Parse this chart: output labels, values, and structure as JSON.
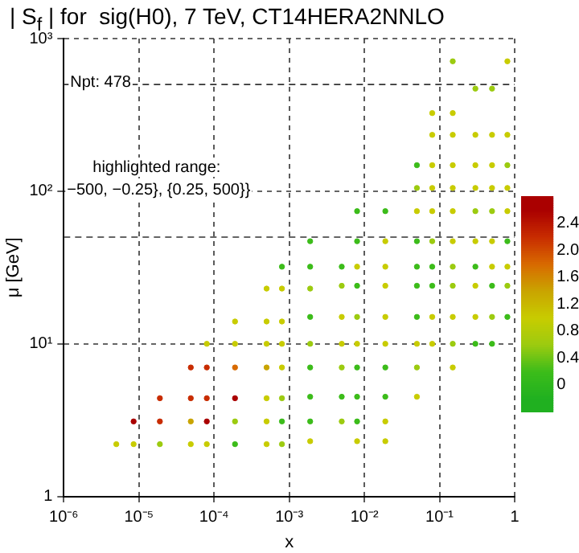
{
  "chart_data": {
    "type": "scatter",
    "title": "| S$_{f}$ | for  sig(H0), 7 TeV, CT14HERA2NNLO",
    "xlabel": "x",
    "ylabel": "μ [GeV]",
    "annotations": [
      "Npt: 478",
      "highlighted range:",
      "−500, −0.25}, {0.25, 500}}"
    ],
    "log": "xy",
    "grid": true,
    "legend": false,
    "marker": "circle",
    "xlim": [
      1e-06,
      1
    ],
    "ylim": [
      1,
      1000
    ],
    "xticks": [
      {
        "value": 1e-06,
        "label": "10⁻⁶"
      },
      {
        "value": 1e-05,
        "label": "10⁻⁵"
      },
      {
        "value": 0.0001,
        "label": "10⁻⁴"
      },
      {
        "value": 0.001,
        "label": "10⁻³"
      },
      {
        "value": 0.01,
        "label": "10⁻²"
      },
      {
        "value": 0.1,
        "label": "10⁻¹"
      },
      1
    ],
    "yticks": [
      1,
      {
        "value": 10,
        "label": "10¹"
      },
      {
        "value": 100,
        "label": "10²"
      },
      {
        "value": 1000,
        "label": "10³"
      }
    ],
    "ref_lines": [
      {
        "axis": "y",
        "value": 50,
        "line_style": "dashed"
      },
      {
        "axis": "y",
        "value": 500,
        "line_style": "dashed"
      }
    ],
    "clim": [
      -0.4,
      2.8
    ],
    "cticks": [
      0,
      0.4,
      0.8,
      1.2,
      1.6,
      {
        "value": 2,
        "label": "2.0"
      },
      2.4
    ],
    "x": [
      5e-06,
      8.5e-06,
      8.5e-06,
      1.9e-05,
      1.9e-05,
      1.9e-05,
      4.9e-05,
      4.9e-05,
      4.9e-05,
      4.9e-05,
      8e-05,
      8e-05,
      8e-05,
      8e-05,
      8e-05,
      0.00019,
      0.00019,
      0.00019,
      0.00019,
      0.00019,
      0.00019,
      0.0005,
      0.0005,
      0.0005,
      0.0005,
      0.0005,
      0.0005,
      0.0005,
      0.0008,
      0.0008,
      0.0008,
      0.0008,
      0.0008,
      0.0008,
      0.0008,
      0.0008,
      0.0019,
      0.0019,
      0.0019,
      0.0019,
      0.0019,
      0.0019,
      0.0019,
      0.0019,
      0.0019,
      0.005,
      0.005,
      0.005,
      0.005,
      0.005,
      0.005,
      0.005,
      0.008,
      0.008,
      0.008,
      0.008,
      0.008,
      0.008,
      0.008,
      0.008,
      0.008,
      0.008,
      0.019,
      0.019,
      0.019,
      0.019,
      0.019,
      0.019,
      0.019,
      0.019,
      0.019,
      0.019,
      0.05,
      0.05,
      0.05,
      0.05,
      0.05,
      0.05,
      0.05,
      0.05,
      0.05,
      0.05,
      0.08,
      0.08,
      0.08,
      0.08,
      0.08,
      0.08,
      0.08,
      0.08,
      0.08,
      0.08,
      0.15,
      0.15,
      0.15,
      0.15,
      0.15,
      0.15,
      0.15,
      0.15,
      0.15,
      0.15,
      0.15,
      0.15,
      0.3,
      0.3,
      0.3,
      0.3,
      0.3,
      0.3,
      0.3,
      0.3,
      0.3,
      0.3,
      0.5,
      0.5,
      0.5,
      0.5,
      0.5,
      0.5,
      0.5,
      0.5,
      0.5,
      0.5,
      0.8,
      0.8,
      0.8,
      0.8,
      0.8,
      0.8,
      0.8,
      0.8,
      0.8
    ],
    "values": [
      2.2,
      2.2,
      3.1,
      2.2,
      3.1,
      4.4,
      2.2,
      3.1,
      4.4,
      7,
      2.2,
      3.1,
      4.4,
      7,
      10,
      2.2,
      3.1,
      4.4,
      7,
      10,
      14,
      2.2,
      3.1,
      4.4,
      7,
      10,
      14,
      23,
      2.2,
      3.1,
      4.4,
      7,
      10,
      14,
      23,
      32,
      2.3,
      3.1,
      4.5,
      7,
      10,
      15,
      23,
      32,
      47,
      3.1,
      4.5,
      7,
      10,
      15,
      24,
      32,
      2.3,
      3.1,
      4.5,
      7,
      10,
      15,
      24,
      32,
      47,
      74,
      2.3,
      3.1,
      4.5,
      7,
      10,
      15,
      24,
      32,
      47,
      74,
      4.5,
      7,
      10,
      15,
      24,
      32,
      47,
      74,
      105,
      148,
      10,
      15,
      24,
      32,
      47,
      74,
      105,
      148,
      234,
      325,
      7,
      10,
      15,
      24,
      32,
      47,
      74,
      105,
      148,
      234,
      325,
      710,
      10,
      15,
      24,
      32,
      47,
      74,
      105,
      148,
      234,
      470,
      10,
      15,
      24,
      32,
      47,
      74,
      105,
      148,
      234,
      470,
      15,
      24,
      32,
      47,
      74,
      105,
      148,
      234,
      710
    ],
    "cvalues": [
      1.0,
      1.0,
      2.6,
      0.6,
      2.2,
      2.2,
      1.0,
      1.4,
      2.2,
      2.2,
      1.0,
      2.6,
      2.2,
      2.2,
      1.0,
      0.2,
      0.6,
      2.6,
      1.8,
      1.0,
      1.0,
      1.0,
      1.0,
      1.0,
      1.4,
      1.0,
      1.0,
      1.0,
      0.6,
      0.2,
      0.6,
      1.0,
      1.0,
      1.0,
      1.0,
      0.2,
      1.0,
      0.2,
      0.2,
      0.2,
      0.6,
      0.2,
      0.6,
      0.2,
      0.2,
      0.6,
      0.2,
      0.6,
      1.0,
      1.0,
      0.6,
      0.2,
      1.0,
      0.2,
      0.2,
      0.2,
      1.0,
      0.6,
      0.2,
      1.0,
      0.2,
      0.2,
      1.0,
      1.0,
      0.2,
      0.2,
      1.0,
      1.0,
      1.0,
      1.0,
      1.0,
      0.2,
      1.0,
      0.6,
      1.0,
      0.2,
      0.2,
      0.2,
      0.2,
      1.0,
      0.6,
      0.2,
      1.0,
      1.0,
      0.2,
      0.2,
      0.6,
      1.0,
      1.0,
      1.0,
      1.0,
      1.0,
      1.0,
      0.6,
      1.0,
      0.6,
      0.6,
      1.0,
      1.0,
      1.0,
      1.0,
      1.0,
      1.0,
      0.6,
      0.2,
      1.0,
      1.0,
      0.2,
      1.0,
      0.6,
      1.0,
      1.0,
      1.0,
      0.6,
      0.2,
      0.6,
      0.2,
      1.0,
      1.0,
      0.6,
      1.0,
      1.0,
      1.0,
      0.6,
      0.2,
      0.6,
      1.0,
      0.2,
      1.0,
      1.0,
      0.6,
      1.0,
      1.0
    ]
  }
}
